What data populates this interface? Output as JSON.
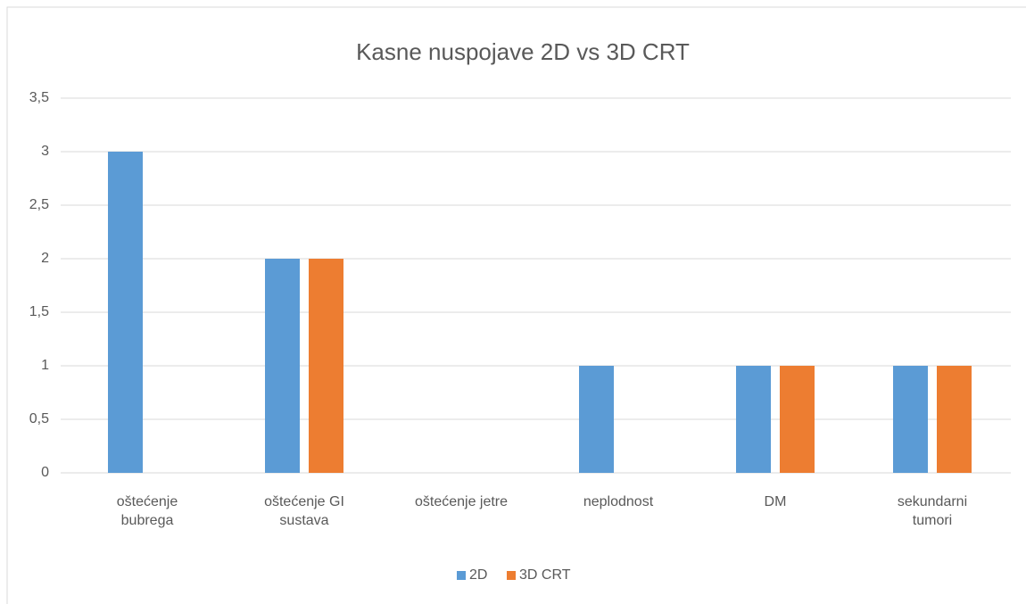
{
  "chart_data": {
    "type": "bar",
    "title": "Kasne nuspojave 2D vs 3D CRT",
    "categories": [
      "oštećenje bubrega",
      "oštećenje GI sustava",
      "oštećenje jetre",
      "neplodnost",
      "DM",
      "sekundarni tumori"
    ],
    "series": [
      {
        "name": "2D",
        "color": "#5b9bd5",
        "values": [
          3,
          2,
          0,
          1,
          1,
          1
        ]
      },
      {
        "name": "3D CRT",
        "color": "#ed7d31",
        "values": [
          0,
          2,
          0,
          0,
          1,
          1
        ]
      }
    ],
    "ylim": [
      0,
      3.5
    ],
    "yticks": [
      0,
      {
        "value": 0.5,
        "label": "0,5"
      },
      1,
      {
        "value": 1.5,
        "label": "1,5"
      },
      2,
      {
        "value": 2.5,
        "label": "2,5"
      },
      3,
      {
        "value": 3.5,
        "label": "3,5"
      }
    ],
    "grid": true,
    "legend": "bottom"
  }
}
